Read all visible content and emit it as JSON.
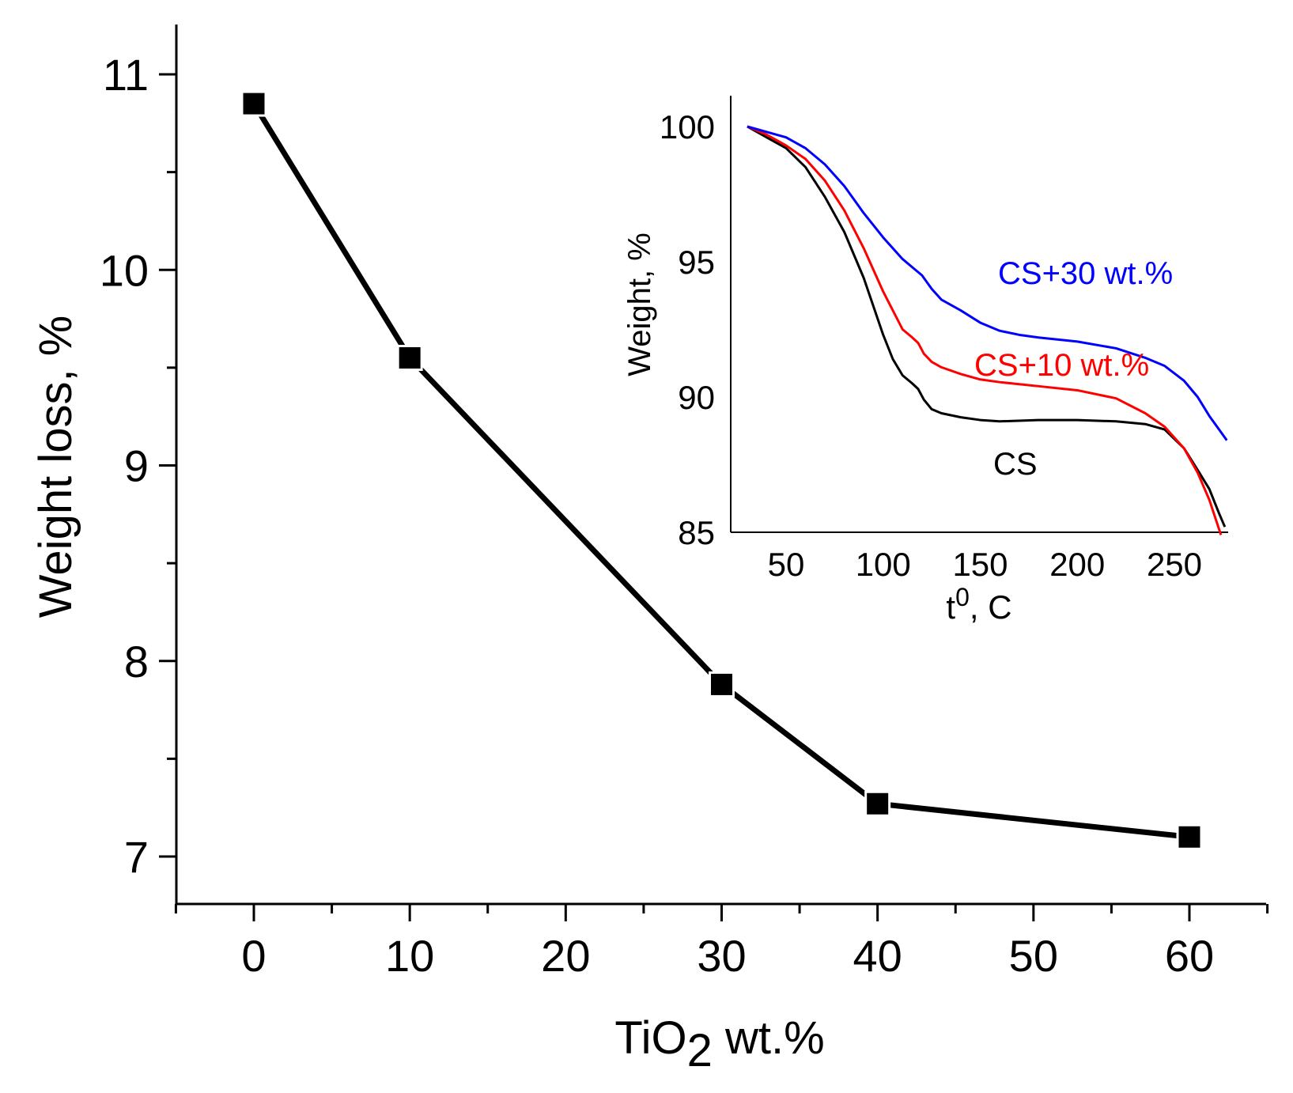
{
  "chart_data": [
    {
      "type": "line",
      "xlabel": "TiO",
      "xlabel_sub": "2",
      "xlabel_suffix": " wt.%",
      "ylabel": "Weight loss, %",
      "xlim": [
        -5,
        65
      ],
      "ylim": [
        6.75,
        11.25
      ],
      "xticks": [
        0,
        10,
        20,
        30,
        40,
        50,
        60
      ],
      "yticks": [
        7,
        8,
        9,
        10,
        11
      ],
      "marker": "square",
      "series": [
        {
          "name": "Weight loss",
          "color": "#000000",
          "x": [
            0,
            10,
            30,
            40,
            60
          ],
          "y": [
            10.85,
            9.55,
            7.88,
            7.27,
            7.1
          ]
        }
      ]
    },
    {
      "type": "line",
      "inset": true,
      "xlabel": "t",
      "xlabel_sup": "0",
      "xlabel_suffix": ", C",
      "ylabel": "Weight, %",
      "xlim": [
        27,
        282
      ],
      "ylim": [
        85,
        101.2
      ],
      "xticks": [
        50,
        100,
        150,
        200,
        250
      ],
      "yticks": [
        85,
        90,
        95,
        100
      ],
      "series": [
        {
          "name": "CS",
          "color": "#000000",
          "x": [
            30,
            40,
            50,
            60,
            70,
            80,
            90,
            100,
            105,
            110,
            115,
            118,
            121,
            125,
            130,
            140,
            150,
            160,
            180,
            200,
            220,
            235,
            245,
            255,
            262,
            268,
            273,
            276
          ],
          "y": [
            100,
            99.6,
            99.2,
            98.5,
            97.4,
            96.1,
            94.4,
            92.3,
            91.4,
            90.8,
            90.5,
            90.3,
            89.9,
            89.55,
            89.4,
            89.25,
            89.15,
            89.1,
            89.15,
            89.15,
            89.1,
            89.0,
            88.8,
            88.1,
            87.3,
            86.6,
            85.7,
            85.2
          ]
        },
        {
          "name": "CS+10 wt.%",
          "color": "#ff0000",
          "x": [
            30,
            40,
            50,
            60,
            70,
            80,
            90,
            100,
            105,
            110,
            115,
            118,
            121,
            125,
            130,
            140,
            150,
            160,
            180,
            200,
            220,
            235,
            245,
            255,
            262,
            268,
            274
          ],
          "y": [
            100,
            99.7,
            99.3,
            98.8,
            98.0,
            96.9,
            95.5,
            93.9,
            93.2,
            92.5,
            92.2,
            92.0,
            91.6,
            91.3,
            91.1,
            90.85,
            90.65,
            90.55,
            90.4,
            90.25,
            89.95,
            89.4,
            88.9,
            88.1,
            87.2,
            86.2,
            84.9
          ]
        },
        {
          "name": "CS+30 wt.%",
          "color": "#0000ff",
          "x": [
            30,
            40,
            50,
            60,
            70,
            80,
            90,
            100,
            110,
            115,
            120,
            125,
            130,
            140,
            150,
            160,
            170,
            180,
            200,
            220,
            235,
            245,
            255,
            262,
            268,
            273,
            277
          ],
          "y": [
            100,
            99.8,
            99.6,
            99.2,
            98.6,
            97.8,
            96.8,
            95.9,
            95.1,
            94.8,
            94.5,
            94.0,
            93.6,
            93.2,
            92.75,
            92.45,
            92.3,
            92.2,
            92.05,
            91.8,
            91.45,
            91.15,
            90.6,
            90.0,
            89.3,
            88.8,
            88.4
          ]
        }
      ],
      "annotations": [
        "CS+30 wt.%",
        "CS+10 wt.%",
        "CS"
      ]
    }
  ]
}
